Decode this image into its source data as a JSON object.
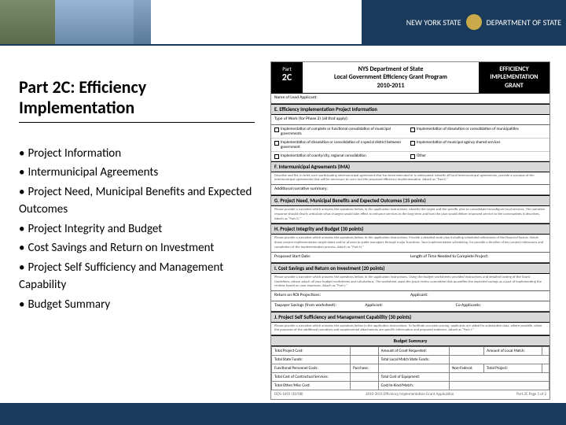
{
  "header": {
    "state_label": "NEW YORK STATE",
    "dept_label": "DEPARTMENT OF STATE"
  },
  "title": "Part 2C:  Efficiency Implementation",
  "bullets": [
    "Project Information",
    "Intermunicipal Agreements",
    "Project Need, Municipal Benefits and Expected Outcomes",
    "Project Integrity and Budget",
    "Cost Savings and Return on Investment",
    "Project Self Sufficiency and Management Capability",
    "Budget Summary"
  ],
  "form": {
    "part_label": "Part",
    "part_num": "2C",
    "center_title_l1": "NYS Department of State",
    "center_title_l2": "Local Government Efficiency Grant Program",
    "center_title_l3": "2010-2011",
    "right_box_l1": "EFFICIENCY",
    "right_box_l2": "IMPLEMENTATION",
    "right_box_l3": "GRANT",
    "applicant_label": "Name of Lead Applicant:",
    "sec_e": "E.  Efficiency Implementation Project Information",
    "typework_label": "Type of Work (for Phase 2) (all that apply):",
    "cb1": "Implementation of complete or functional consolidation of municipal governments",
    "cb2": "Implementation of dissolution or consolidation of municipalities",
    "cb3": "Implementation of dissolution or consolidation of a special district between government",
    "cb4": "Implementation of municipal agency shared services",
    "cb5": "Implementation of county/city, regional consolidation",
    "cb6": "Other",
    "sec_f": "F.  Intermunicipal Agreements (IMA)",
    "f_text": "Describe and list, in brief, each participating intermunicipal agreement that has been executed or is anticipated. Identify all local intermunicipal agreements, provide a synopsis of the intermunicipal agreements that will be necessary to carry out the proposed efficiency implementation. Attach as \"Part E.\"",
    "f_label": "Additional narrative summary:",
    "sec_g": "G.  Project Need, Municipal Benefits and Expected Outcomes (35 points)",
    "g_text": "Please provide a narrative which answers the questions below, in the application instructions. Identify the target and the specific plan to consolidate/reconfigure local services. The narrative response should clearly articulate what changes would take effect to enhance services in the long term and how the plan would deliver improved service to the communities it describes. Attach as \"Part G.\"",
    "sec_h": "H.  Project Integrity and Budget (30 points)",
    "h_text": "Please provide a narrative which answers the questions below, in the application instructions. Provide a detailed work plan including scheduled milestones of the financial factors. Break down project implementation target dates and/or phases to guide managers through major functions. Your implementation scheduling, for provide a timeline of key project milestones and completion of the implementation process. Attach as \"Part H.\"",
    "h_label1": "Proposed Start Date:",
    "h_label2": "Length of Time Needed to Complete Project:",
    "sec_i": "I.  Cost Savings and Return on Investment (20 points)",
    "i_text": "Please provide a narrative which answers the questions below, in the application instructions. Using the budget worksheets provided instructions and detailed costing of the Grant Guidelines, please attach all your budget worksheets and calculations. The worksheet assist the grant review committee that quantifies the expected savings as a part of implementing the reviews based on your expenses. Attach as \"Part I.\"",
    "i_roi_label": "Return on ROI Projections:",
    "i_tax_label": "Taxpayer Savings (from worksheet):",
    "i_app_label": "Applicant:",
    "i_coapp_label": "Co-Applicants:",
    "sec_j": "J.  Project Self Sufficiency and Management Capability (30 points)",
    "j_text": "Please provide a narrative which answers the questions below in the application instructions. To facilitate accurate scoring, applicants are asked for substantive data, where possible, when the purposes of the additional narratives and supplemental attachments are specific information and prepared evidence. Attach as \"Part J.\"",
    "budget_head": "Budget Summary",
    "bt_r1c1": "Total Project Cost:",
    "bt_r1c3": "Amount of Grant Requested:",
    "bt_r1c5": "Amount of Local Match:",
    "bt_r2c1": "Total State Funds:",
    "bt_r2c3": "Total Local Match State Funds:",
    "bt_r3c1": "Functional Personnel Costs:",
    "bt_r3c3": "Purchase:",
    "bt_r3c5": "Non-Federal:",
    "bt_r3c7": "Total Project:",
    "bt_r4c1": "Total Cost of Contractual Services:",
    "bt_r4c3": "Total Cost of Equipment:",
    "bt_r5c1": "Total Other/Misc Cost:",
    "bt_r5c3": "Cost/In-Kind/Match:",
    "footer_left": "DOS-1692 (10/08)",
    "footer_center": "2010-2011 Efficiency Implementation Grant Application",
    "footer_right": "Part 2C  Page 1 of 2"
  }
}
